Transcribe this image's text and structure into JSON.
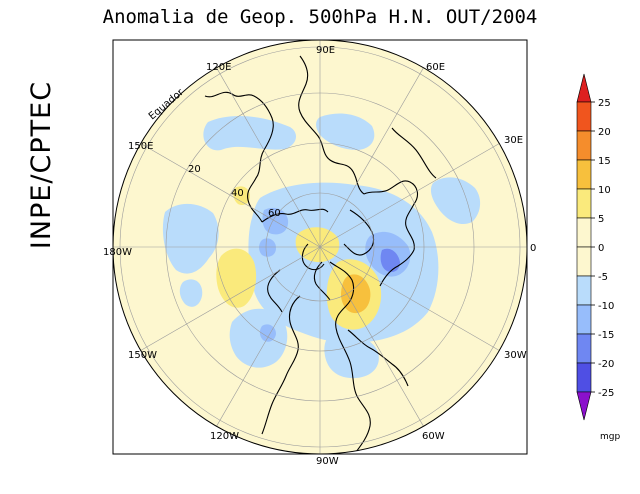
{
  "title": "Anomalia de Geop. 500hPa H.N. OUT/2004",
  "side_label": "INPE/CPTEC",
  "map": {
    "projection": "north-polar-stereographic",
    "lon_labels": [
      "90E",
      "60E",
      "30E",
      "0",
      "30W",
      "60W",
      "90W",
      "120W",
      "150W",
      "180W",
      "150E",
      "120E"
    ],
    "lat_labels": [
      "20",
      "40",
      "60"
    ],
    "equator_label": "Equador"
  },
  "colorbar": {
    "unit": "mgp",
    "ticks": [
      "25",
      "20",
      "15",
      "10",
      "5",
      "0",
      "-5",
      "-10",
      "-15",
      "-20",
      "-25"
    ],
    "colors": [
      "#f0551e",
      "#f58d2c",
      "#f7c03d",
      "#faea7c",
      "#fdf7cf",
      "#fdf7cf",
      "#b9dcfb",
      "#97bdfb",
      "#6f87f2",
      "#4f4fe4",
      "#3a2fd2",
      "#8b10cc"
    ],
    "top_arrow_color": "#dd1f1f",
    "bottom_arrow_color": "#8b10cc"
  },
  "anomaly_regions": [
    {
      "sign": "negative",
      "level": "-5",
      "near": "150E-120E mid latitudes"
    },
    {
      "sign": "negative",
      "level": "-5",
      "near": "north Pacific / 180W"
    },
    {
      "sign": "positive",
      "level": "5",
      "near": "150W mid latitudes"
    },
    {
      "sign": "negative",
      "level": "-10",
      "near": "north Atlantic / Europe 30E"
    },
    {
      "sign": "positive",
      "level": "10",
      "near": "north Atlantic / Greenland 60W"
    },
    {
      "sign": "negative",
      "level": "-5",
      "near": "eastern Atlantic 30W"
    },
    {
      "sign": "negative",
      "level": "-5",
      "near": "Scandinavia / north Europe"
    }
  ]
}
